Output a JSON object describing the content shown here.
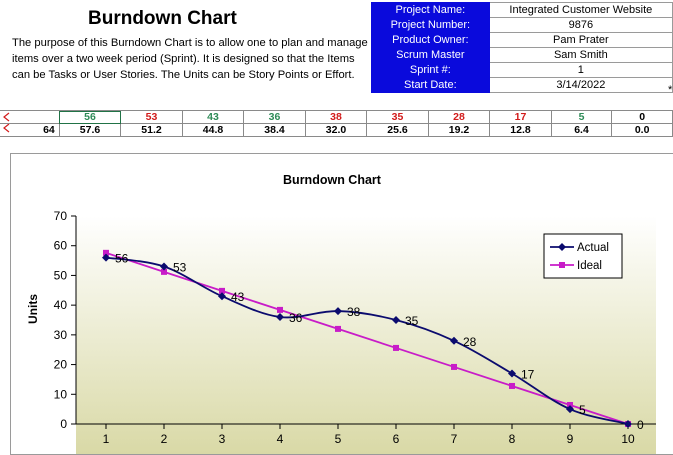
{
  "sheet": {
    "title": "Burndown Chart",
    "description": "The purpose of this Burndown Chart is to allow one to plan and manage items over a two week period (Sprint).  It is designed so that the Items can be Tasks or User Stories.  The Units can be Story Points or Effort.",
    "project": [
      {
        "label": "Project Name:",
        "value": "Integrated Customer Website"
      },
      {
        "label": "Project Number:",
        "value": "9876"
      },
      {
        "label": "Product Owner:",
        "value": "Pam Prater"
      },
      {
        "label": "Scrum Master",
        "value": "Sam Smith"
      },
      {
        "label": "Sprint #:",
        "value": "1"
      },
      {
        "label": "Start Date:",
        "value": "3/14/2022"
      }
    ],
    "star": "*",
    "actual_row": [
      "56",
      "53",
      "43",
      "36",
      "38",
      "35",
      "28",
      "17",
      "5",
      "0"
    ],
    "ideal_row_lead": "64",
    "ideal_row": [
      "57.6",
      "51.2",
      "44.8",
      "38.4",
      "32.0",
      "25.6",
      "19.2",
      "12.8",
      "6.4",
      "0.0"
    ]
  },
  "colors": {
    "header_blue": "#0a0adc",
    "actual_line": "#0b0b6e",
    "ideal_line": "#c81cc8",
    "plot_gradient_top": "#ffffff",
    "plot_gradient_bottom": "#d9d9a6"
  },
  "chart_data": {
    "type": "line",
    "title": "Burndown Chart",
    "xlabel": "",
    "ylabel": "Units",
    "x": [
      1,
      2,
      3,
      4,
      5,
      6,
      7,
      8,
      9,
      10
    ],
    "ylim": [
      0,
      70
    ],
    "yticks": [
      0,
      10,
      20,
      30,
      40,
      50,
      60,
      70
    ],
    "grid": false,
    "legend_position": "top-right",
    "series": [
      {
        "name": "Actual",
        "values": [
          56,
          53,
          43,
          36,
          38,
          35,
          28,
          17,
          5,
          0
        ],
        "labels": [
          "56",
          "53",
          "43",
          "36",
          "38",
          "35",
          "28",
          "17",
          "5",
          "0"
        ]
      },
      {
        "name": "Ideal",
        "values": [
          57.6,
          51.2,
          44.8,
          38.4,
          32.0,
          25.6,
          19.2,
          12.8,
          6.4,
          0.0
        ]
      }
    ]
  }
}
